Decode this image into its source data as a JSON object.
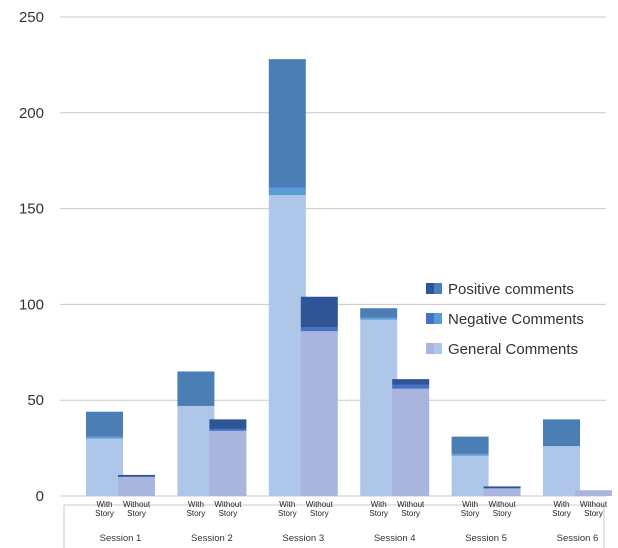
{
  "chart_data": {
    "type": "bar",
    "stacked": true,
    "ylim": [
      0,
      250
    ],
    "yticks": [
      0,
      50,
      100,
      150,
      200,
      250
    ],
    "grid": true,
    "legend_position": "right",
    "groups": [
      "Session 1",
      "Session 2",
      "Session 3",
      "Session 4",
      "Session 5",
      "Session 6"
    ],
    "subcategories": [
      "With Story",
      "Without Story"
    ],
    "series": [
      {
        "name": "General Comments",
        "color": "#aec6e8",
        "alt_color": "#a9b5dd",
        "values": [
          30,
          10,
          47,
          34,
          157,
          86,
          92,
          56,
          21,
          4,
          26,
          3
        ]
      },
      {
        "name": "Negative Comments",
        "color": "#5b9bd5",
        "alt_color": "#4472c4",
        "values": [
          1,
          0,
          0,
          1,
          4,
          2,
          1,
          2,
          1,
          0,
          0,
          0
        ]
      },
      {
        "name": "Positive comments",
        "color": "#4a7eb5",
        "alt_color": "#2f5597",
        "values": [
          13,
          1,
          18,
          5,
          67,
          16,
          5,
          3,
          9,
          1,
          14,
          0
        ]
      }
    ],
    "legend_order": [
      "Positive comments",
      "Negative Comments",
      "General Comments"
    ]
  }
}
